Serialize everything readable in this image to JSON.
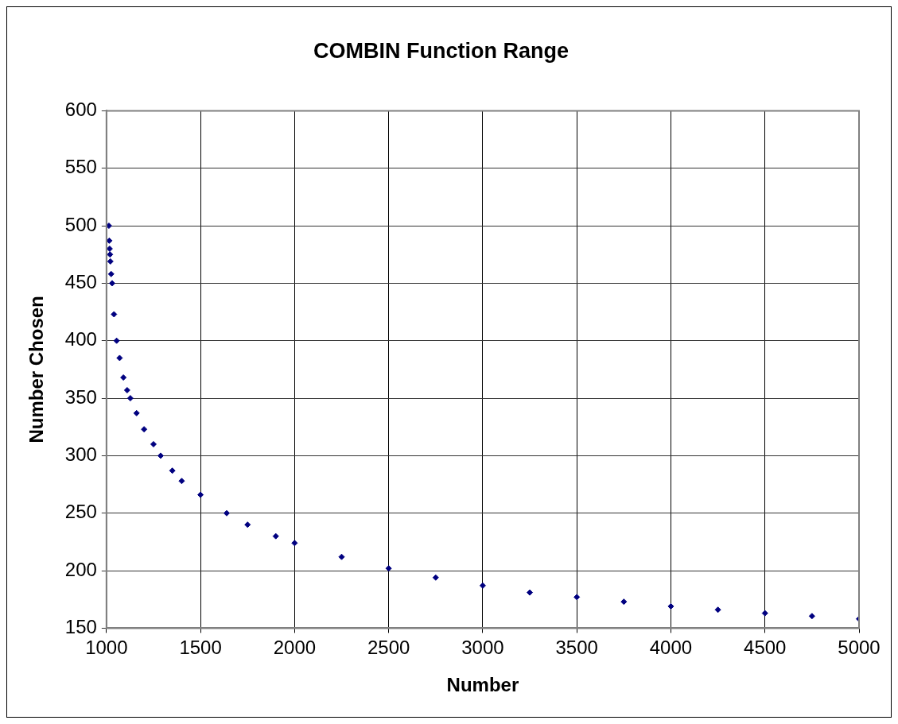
{
  "chart_data": {
    "type": "scatter",
    "title": "COMBIN Function Range",
    "xlabel": "Number",
    "ylabel": "Number Chosen",
    "x": [
      1013,
      1015,
      1017,
      1019,
      1021,
      1025,
      1030,
      1040,
      1054,
      1070,
      1090,
      1110,
      1127,
      1160,
      1200,
      1250,
      1288,
      1350,
      1400,
      1500,
      1639,
      1750,
      1900,
      2000,
      2250,
      2500,
      2750,
      3000,
      3250,
      3500,
      3750,
      4000,
      4250,
      4500,
      4750,
      5000
    ],
    "values": [
      500,
      487,
      480,
      475,
      469,
      458,
      450,
      423,
      400,
      385,
      368,
      357,
      350,
      337,
      323,
      310,
      300,
      287,
      278,
      266,
      250,
      240,
      230,
      224,
      212,
      202,
      194,
      187,
      181,
      177,
      173,
      169,
      166,
      163,
      160.5,
      158
    ],
    "color": "#000080",
    "marker": "diamond",
    "xlim": [
      1000,
      5000
    ],
    "xticks": [
      1000,
      1500,
      2000,
      2500,
      3000,
      3500,
      4000,
      4500,
      5000
    ],
    "ylim": [
      150,
      600
    ],
    "yticks": [
      150,
      200,
      250,
      300,
      350,
      400,
      450,
      500,
      550,
      600
    ],
    "grid": true,
    "legend": false
  }
}
